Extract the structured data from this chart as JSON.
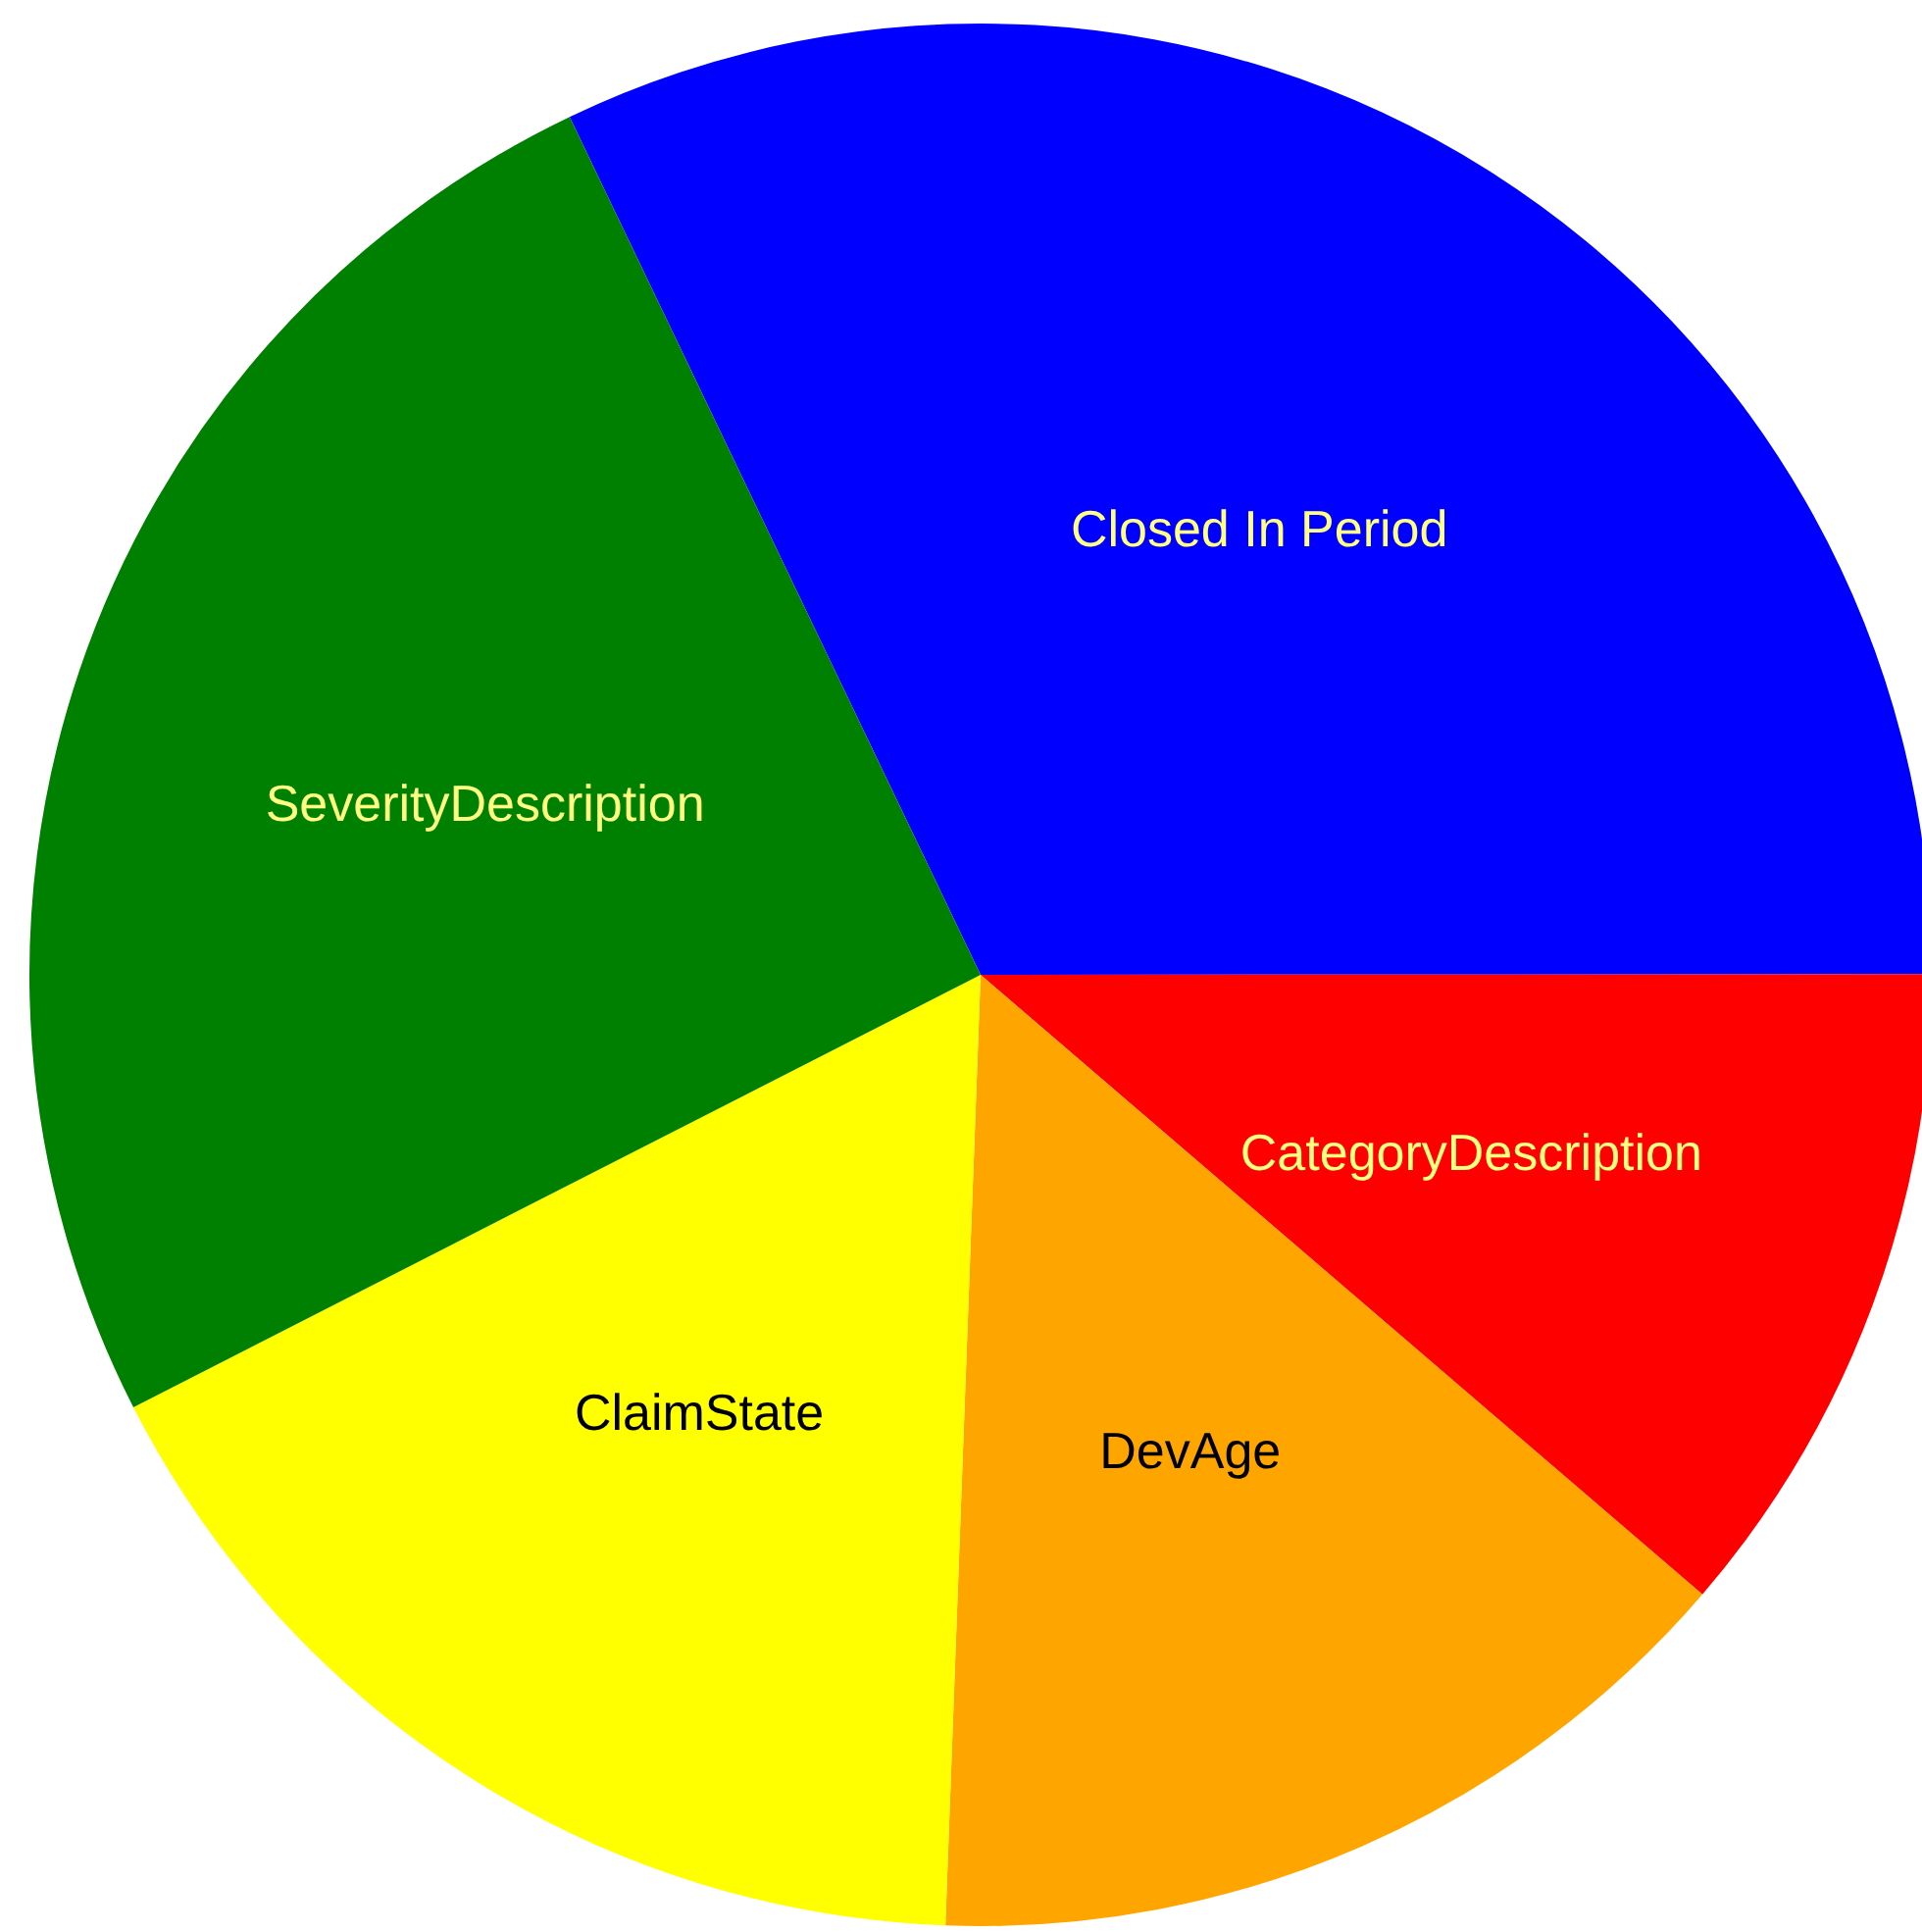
{
  "chart_data": {
    "type": "pie",
    "categories": [
      "Closed In Period",
      "CategoryDescription",
      "DevAge",
      "ClaimState",
      "SeverityDescription"
    ],
    "values": [
      32.1,
      11.3,
      14.3,
      16.9,
      25.4
    ],
    "colors": [
      "#0000ff",
      "#ff0000",
      "#ffa500",
      "#ffff00",
      "#008000"
    ],
    "legend": false
  }
}
